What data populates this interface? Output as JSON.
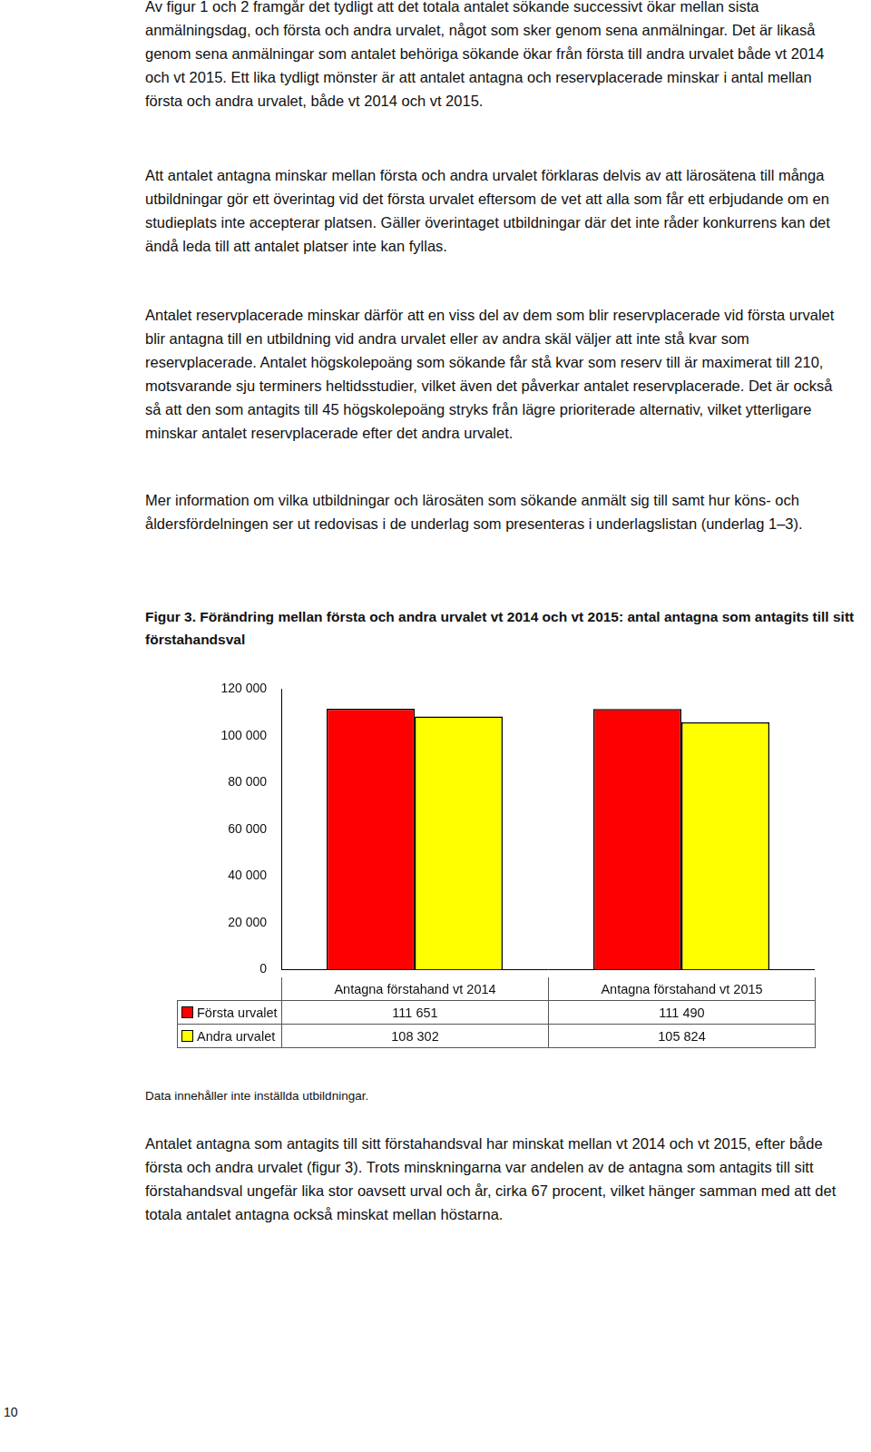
{
  "paragraphs": [
    "Av figur 1 och 2 framgår det tydligt att det totala antalet sökande successivt ökar mellan sista anmälningsdag, och första och andra urvalet, något som sker genom sena anmälningar. Det är likaså genom sena anmälningar som antalet behöriga sökande ökar från första till andra urvalet både vt 2014 och vt 2015. Ett lika tydligt mönster är att antalet antagna och reservplacerade minskar i antal mellan första och andra urvalet, både vt 2014 och vt 2015.",
    "Att antalet antagna minskar mellan första och andra urvalet förklaras delvis av att lärosätena till många utbildningar gör ett överintag vid det första urvalet eftersom de vet att alla som får ett erbjudande om en studieplats inte accepterar platsen. Gäller överintaget utbildningar där det inte råder konkurrens kan det ändå leda till att antalet platser inte kan fyllas.",
    "Antalet reservplacerade minskar därför att en viss del av dem som blir reservplacerade vid första urvalet blir antagna till en utbildning vid andra urvalet eller av andra skäl väljer att inte stå kvar som reservplacerade. Antalet högskolepoäng som sökande får stå kvar som reserv till är maximerat till 210, motsvarande sju terminers heltidsstudier, vilket även det påverkar antalet reservplacerade. Det är också så att den som antagits till 45 högskolepoäng stryks från lägre prioriterade alternativ, vilket ytterligare minskar antalet reservplacerade efter det andra urvalet.",
    "Mer information om vilka utbildningar och lärosäten som sökande anmält sig till samt hur köns- och åldersfördelningen ser ut redovisas i de underlag som presenteras i underlagslistan (underlag 1–3)."
  ],
  "caption": "Figur 3. Förändring mellan första och andra urvalet vt 2014 och vt 2015: antal antagna som antagits till sitt förstahandsval",
  "chart_data": {
    "type": "bar",
    "categories": [
      "Antagna förstahand vt 2014",
      "Antagna förstahand vt 2015"
    ],
    "series": [
      {
        "name": "Första urvalet",
        "color": "#ff0000",
        "values": [
          111651,
          111490
        ],
        "value_labels": [
          "111 651",
          "111 490"
        ]
      },
      {
        "name": "Andra urvalet",
        "color": "#ffff00",
        "values": [
          108302,
          105824
        ],
        "value_labels": [
          "108 302",
          "105 824"
        ]
      }
    ],
    "ylim": [
      0,
      120000
    ],
    "yticks": [
      0,
      {
        "value": 20000,
        "label": "20 000"
      },
      {
        "value": 40000,
        "label": "40 000"
      },
      {
        "value": 60000,
        "label": "60 000"
      },
      {
        "value": 80000,
        "label": "80 000"
      },
      {
        "value": 100000,
        "label": "100 000"
      },
      {
        "value": 120000,
        "label": "120 000"
      }
    ],
    "grid": false
  },
  "note": "Data innehåller inte inställda utbildningar.",
  "closing": "Antalet antagna som antagits till sitt förstahandsval har minskat mellan vt 2014 och vt 2015, efter både första och andra urvalet (figur 3). Trots minskningarna var andelen av de antagna som antagits till sitt förstahandsval ungefär lika stor oavsett urval och år, cirka 67 procent, vilket hänger samman med att det totala antalet antagna också minskat mellan höstarna.",
  "page_number": "10"
}
